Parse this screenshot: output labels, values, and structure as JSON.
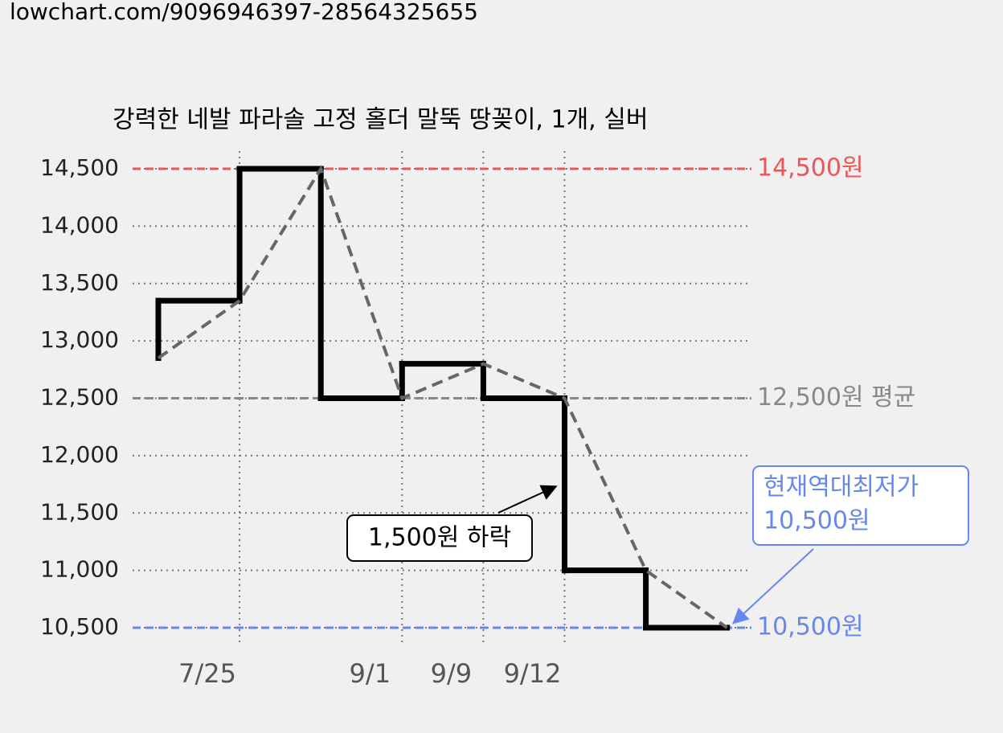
{
  "header": "lowchart.com/9096946397-28564325655",
  "chart_data": {
    "type": "step",
    "title": "강력한 네발 파라솔 고정 홀더 말뚝 땅꽂이, 1개, 실버",
    "categories": [
      null,
      "7/25",
      null,
      "9/1",
      "9/9",
      "9/12",
      null,
      null
    ],
    "series": [
      {
        "color": "#000000",
        "trend_color": "#666666",
        "values": [
          12850,
          13350,
          14500,
          12500,
          12800,
          12500,
          11000,
          10500
        ]
      }
    ],
    "ylim": [
      10500,
      14500
    ],
    "yticks": [
      {
        "value": 10500,
        "label": "10,500"
      },
      {
        "value": 11000,
        "label": "11,000"
      },
      {
        "value": 11500,
        "label": "11,500"
      },
      {
        "value": 12000,
        "label": "12,000"
      },
      {
        "value": 12500,
        "label": "12,500"
      },
      {
        "value": 13000,
        "label": "13,000"
      },
      {
        "value": 13500,
        "label": "13,500"
      },
      {
        "value": 14000,
        "label": "14,000"
      },
      {
        "value": 14500,
        "label": "14,500"
      }
    ],
    "grid": true,
    "reference_lines": [
      {
        "value": 14500,
        "label": "14,500원",
        "color": "#ee5555"
      },
      {
        "value": 12500,
        "label": "12,500원 평균",
        "color": "#888888"
      },
      {
        "value": 10500,
        "label": "10,500원",
        "color": "#6688ee"
      }
    ],
    "annotations": [
      {
        "text": "1,500원 하락"
      },
      {
        "lines": [
          "현재역대최저가",
          "10,500원"
        ]
      }
    ]
  }
}
